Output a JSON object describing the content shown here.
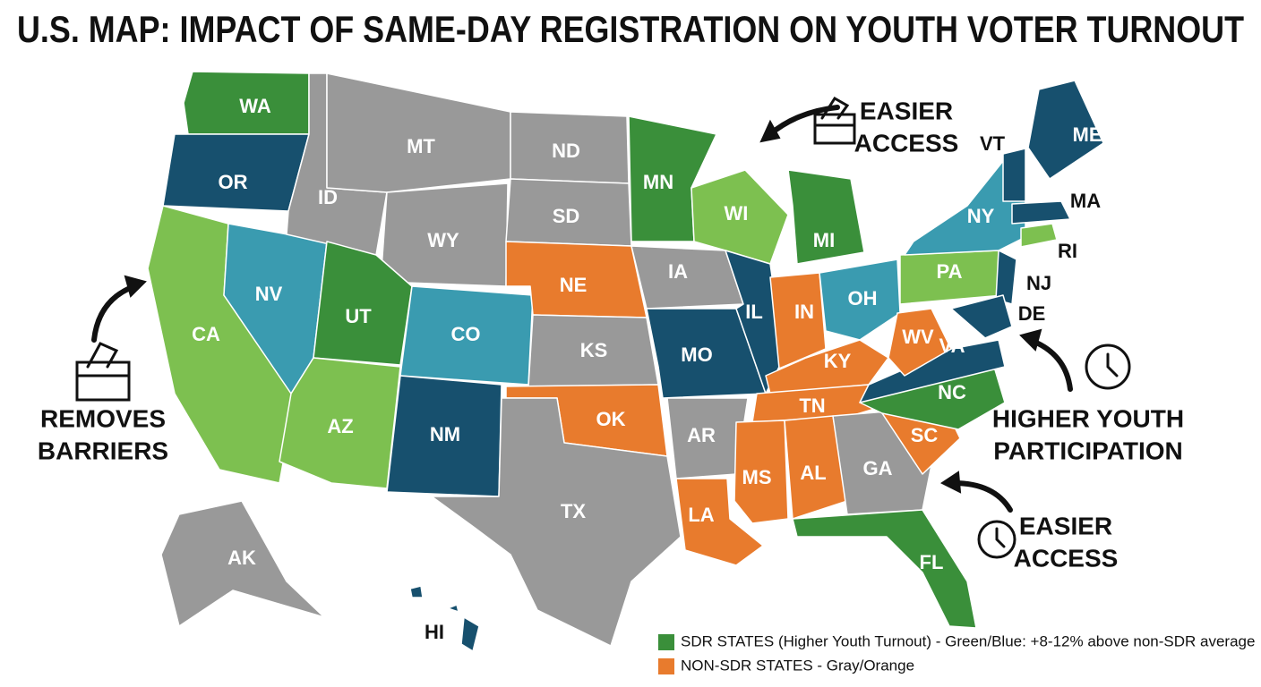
{
  "title": "U.S. MAP: IMPACT OF SAME-DAY REGISTRATION ON YOUTH VOTER TURNOUT",
  "states": [
    {
      "label": "WA",
      "color": "#3a8f3a"
    },
    {
      "label": "OR",
      "color": "#17506e"
    },
    {
      "label": "CA",
      "color": "#7dc050"
    },
    {
      "label": "NV",
      "color": "#3a9bb0"
    },
    {
      "label": "ID",
      "color": "#999999"
    },
    {
      "label": "MT",
      "color": "#999999"
    },
    {
      "label": "WY",
      "color": "#999999"
    },
    {
      "label": "UT",
      "color": "#3a8f3a"
    },
    {
      "label": "CO",
      "color": "#3a9bb0"
    },
    {
      "label": "AZ",
      "color": "#7dc050"
    },
    {
      "label": "NM",
      "color": "#17506e"
    },
    {
      "label": "ND",
      "color": "#999999"
    },
    {
      "label": "SD",
      "color": "#999999"
    },
    {
      "label": "NE",
      "color": "#e87b2d"
    },
    {
      "label": "KS",
      "color": "#999999"
    },
    {
      "label": "OK",
      "color": "#e87b2d"
    },
    {
      "label": "TX",
      "color": "#999999"
    },
    {
      "label": "MN",
      "color": "#3a8f3a"
    },
    {
      "label": "IA",
      "color": "#999999"
    },
    {
      "label": "MO",
      "color": "#17506e"
    },
    {
      "label": "AR",
      "color": "#999999"
    },
    {
      "label": "LA",
      "color": "#e87b2d"
    },
    {
      "label": "WI",
      "color": "#7dc050"
    },
    {
      "label": "IL",
      "color": "#17506e"
    },
    {
      "label": "MI",
      "color": "#3a8f3a"
    },
    {
      "label": "IN",
      "color": "#e87b2d"
    },
    {
      "label": "OH",
      "color": "#3a9bb0"
    },
    {
      "label": "KY",
      "color": "#e87b2d"
    },
    {
      "label": "TN",
      "color": "#e87b2d"
    },
    {
      "label": "MS",
      "color": "#e87b2d"
    },
    {
      "label": "AL",
      "color": "#e87b2d"
    },
    {
      "label": "GA",
      "color": "#999999"
    },
    {
      "label": "FL",
      "color": "#3a8f3a"
    },
    {
      "label": "SC",
      "color": "#e87b2d"
    },
    {
      "label": "NC",
      "color": "#3a8f3a"
    },
    {
      "label": "VA",
      "color": "#17506e"
    },
    {
      "label": "WV",
      "color": "#e87b2d"
    },
    {
      "label": "PA",
      "color": "#7dc050"
    },
    {
      "label": "NY",
      "color": "#3a9bb0"
    },
    {
      "label": "NJ",
      "color": "#17506e"
    },
    {
      "label": "DE",
      "color": "#17506e"
    },
    {
      "label": "VT",
      "color": "#17506e"
    },
    {
      "label": "ME",
      "color": "#17506e"
    },
    {
      "label": "MA",
      "color": "#17506e"
    },
    {
      "label": "RI",
      "color": "#7dc050"
    },
    {
      "label": "AK",
      "color": "#999999"
    },
    {
      "label": "HI",
      "color": "#17506e"
    }
  ],
  "annotations": [
    {
      "lines": [
        "EASIER",
        "ACCESS"
      ]
    },
    {
      "lines": [
        "REMOVES",
        "BARRIERS"
      ]
    },
    {
      "lines": [
        "HIGHER YOUTH",
        "PARTICIPATION"
      ]
    },
    {
      "lines": [
        "EASIER",
        "ACCESS"
      ]
    }
  ],
  "legend": [
    {
      "label": "SDR STATES (Higher Youth Turnout) - Green/Blue: +8-12% above non-SDR average",
      "color": "#3a8f3a"
    },
    {
      "label": "NON-SDR STATES - Gray/Orange",
      "color": "#e87b2d"
    }
  ]
}
